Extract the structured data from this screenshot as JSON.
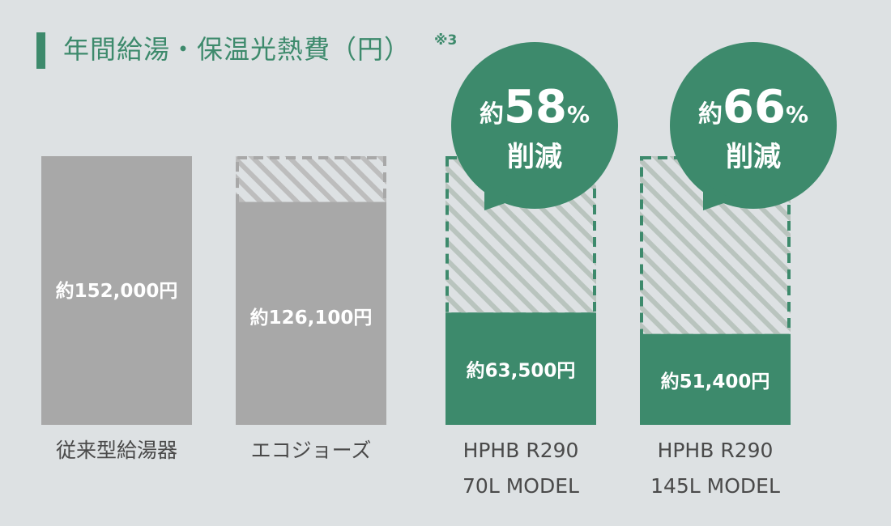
{
  "title": "年間給湯・保温光熱費（円）",
  "title_note": "※3",
  "chart_data": {
    "type": "bar",
    "title": "年間給湯・保温光熱費（円）",
    "ylim": [
      0,
      152000
    ],
    "baseline_value": 152000,
    "categories": [
      [
        "従来型給湯器"
      ],
      [
        "エコジョーズ"
      ],
      [
        "HPHB R290",
        "70L MODEL"
      ],
      [
        "HPHB R290",
        "145L MODEL"
      ]
    ],
    "values": [
      152000,
      126100,
      63500,
      51400
    ],
    "value_labels": [
      "約152,000円",
      "約126,100円",
      "約63,500円",
      "約51,400円"
    ],
    "bar_colors": [
      "#a8a8a8",
      "#a8a8a8",
      "#3d8a6c",
      "#3d8a6c"
    ],
    "hatch_colors": [
      "#a8a8a8",
      "#a8a8a8",
      "#3d8a6c",
      "#3d8a6c"
    ],
    "reduction_callouts": [
      {
        "bar_index": 2,
        "prefix": "約",
        "value": "58",
        "unit": "%",
        "label": "削減"
      },
      {
        "bar_index": 3,
        "prefix": "約",
        "value": "66",
        "unit": "%",
        "label": "削減"
      }
    ],
    "grid": false,
    "legend": "none"
  },
  "colors": {
    "accent": "#3d8a6c",
    "gray_bar": "#a8a8a8",
    "background": "#dde1e3"
  }
}
